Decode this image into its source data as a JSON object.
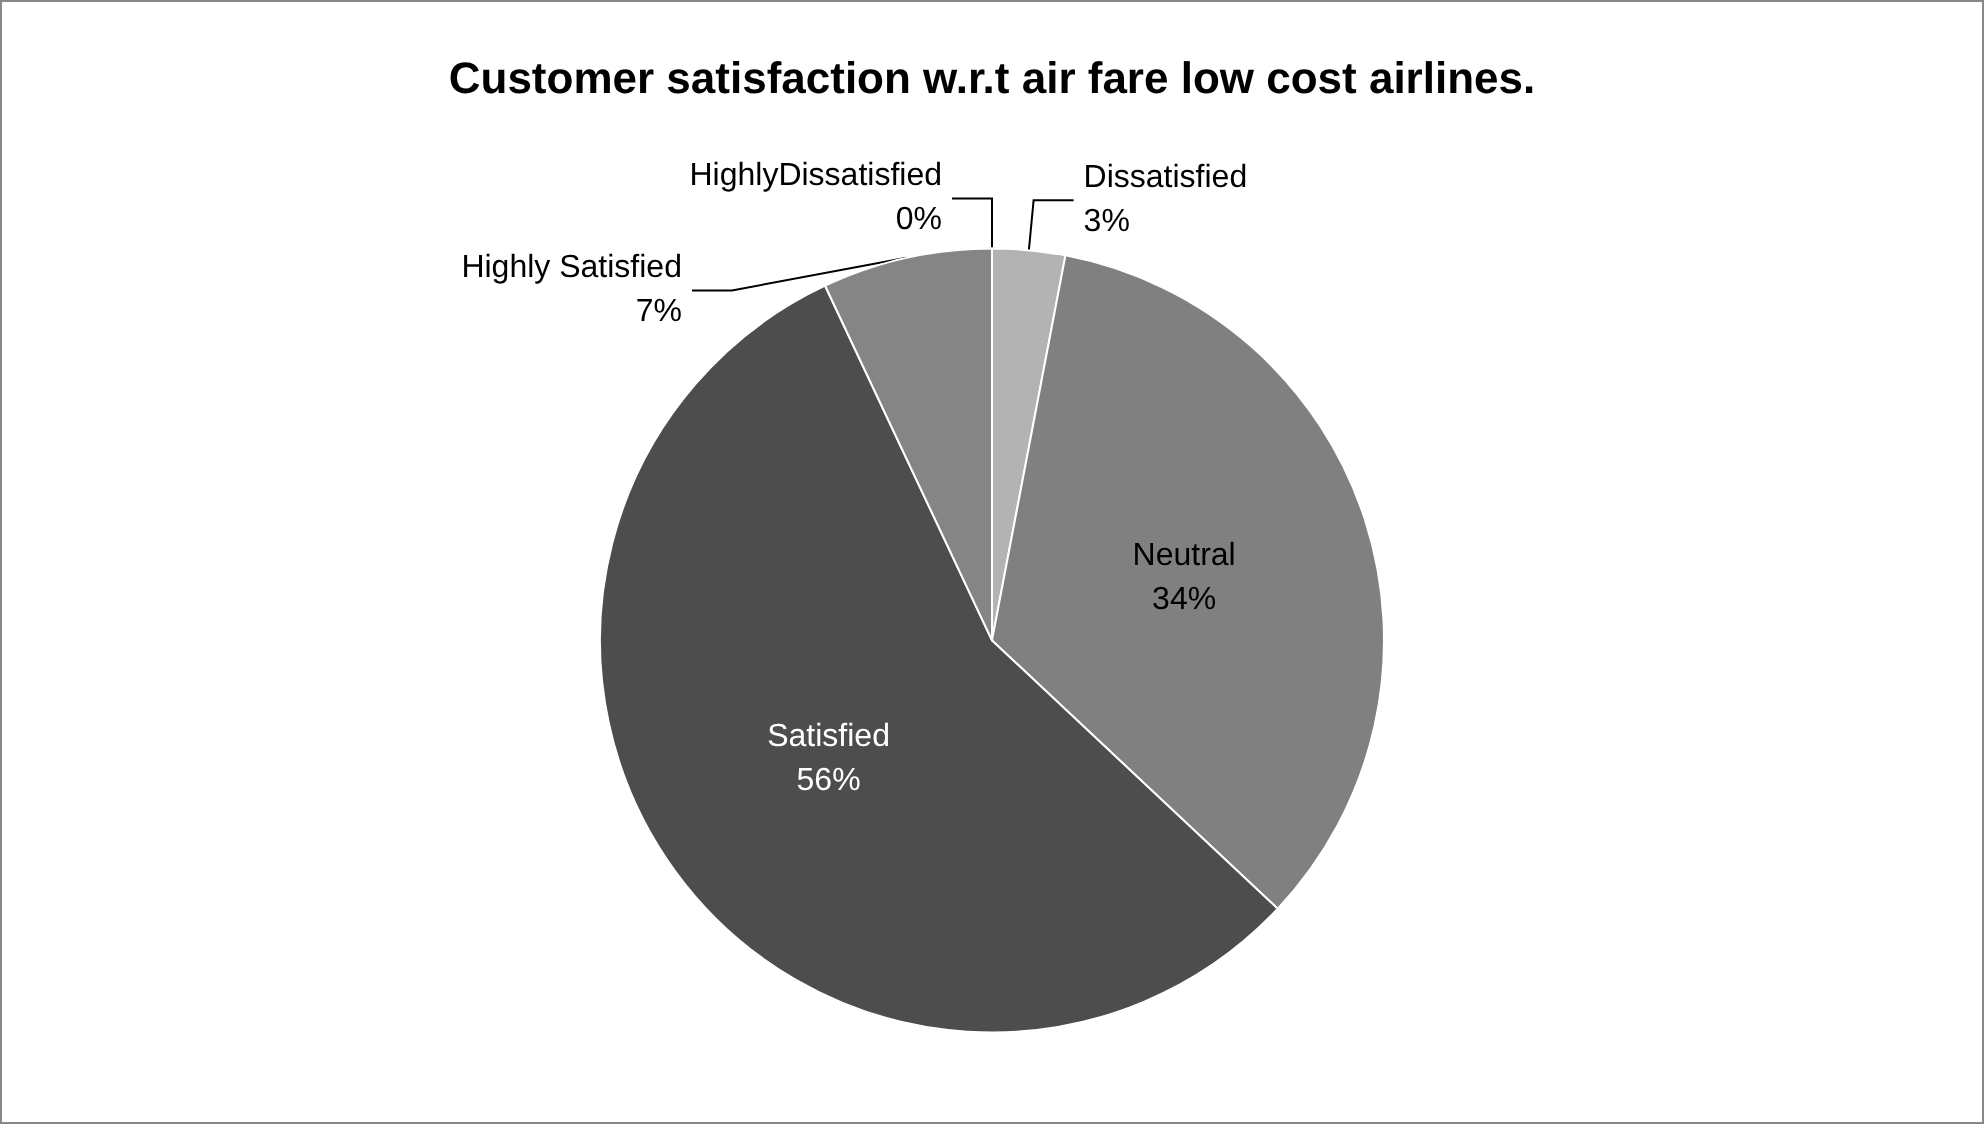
{
  "chart_data": {
    "type": "pie",
    "title": "Customer satisfaction w.r.t air fare low cost airlines.",
    "categories": [
      "HighlyDissatisfied",
      "Dissatisfied",
      "Neutral",
      "Satisfied",
      "Highly Satisfied"
    ],
    "values": [
      0,
      3,
      34,
      56,
      7
    ],
    "colors": [
      "#c8c8c8",
      "#b3b3b3",
      "#808080",
      "#4d4d4d",
      "#858585"
    ],
    "value_labels": [
      "0%",
      "3%",
      "34%",
      "56%",
      "7%"
    ],
    "legend": false
  }
}
